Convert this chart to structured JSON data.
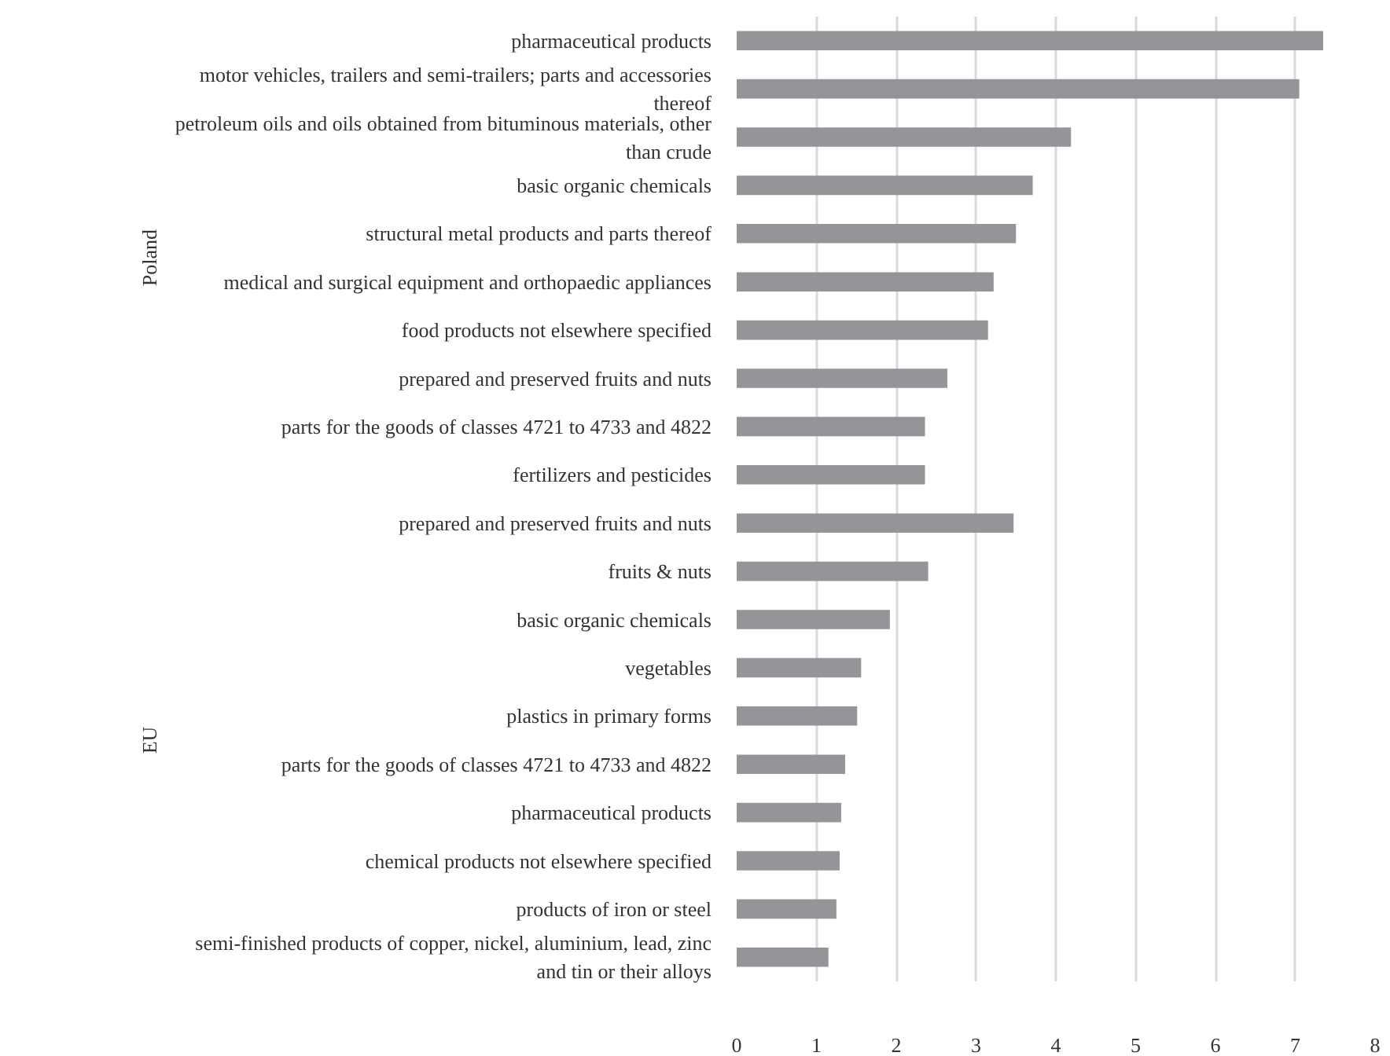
{
  "chart_data": {
    "type": "bar",
    "orientation": "horizontal",
    "categories": [
      "pharmaceutical products",
      "motor vehicles, trailers and semi-trailers; parts and accessories thereof",
      "petroleum oils and oils obtained from bituminous materials, other than crude",
      "basic organic chemicals",
      "structural metal products and parts thereof",
      "medical and surgical equipment and orthopaedic appliances",
      "food products not elsewhere specified",
      "prepared and preserved fruits and nuts",
      "parts for the goods of classes 4721 to 4733 and 4822",
      "fertilizers and pesticides",
      "prepared and preserved fruits and nuts",
      "fruits & nuts",
      "basic organic chemicals",
      "vegetables",
      "plastics in primary forms",
      "parts for the goods of classes 4721 to 4733 and 4822",
      "pharmaceutical products",
      "chemical products not elsewhere specified",
      "products of iron or steel",
      "semi-finished products of copper, nickel, aluminium, lead, zinc and tin or their alloys"
    ],
    "values": [
      7.35,
      7.05,
      4.19,
      3.71,
      3.5,
      3.22,
      3.15,
      2.64,
      2.36,
      2.36,
      3.47,
      2.4,
      1.92,
      1.56,
      1.51,
      1.36,
      1.31,
      1.29,
      1.25,
      1.15
    ],
    "color": "#939598",
    "annotations": [
      "Poland",
      "EU"
    ],
    "xlim": [
      0,
      8
    ],
    "xticks": [
      0,
      1,
      2,
      3,
      4,
      5,
      6,
      7,
      8
    ],
    "grid": "x"
  }
}
